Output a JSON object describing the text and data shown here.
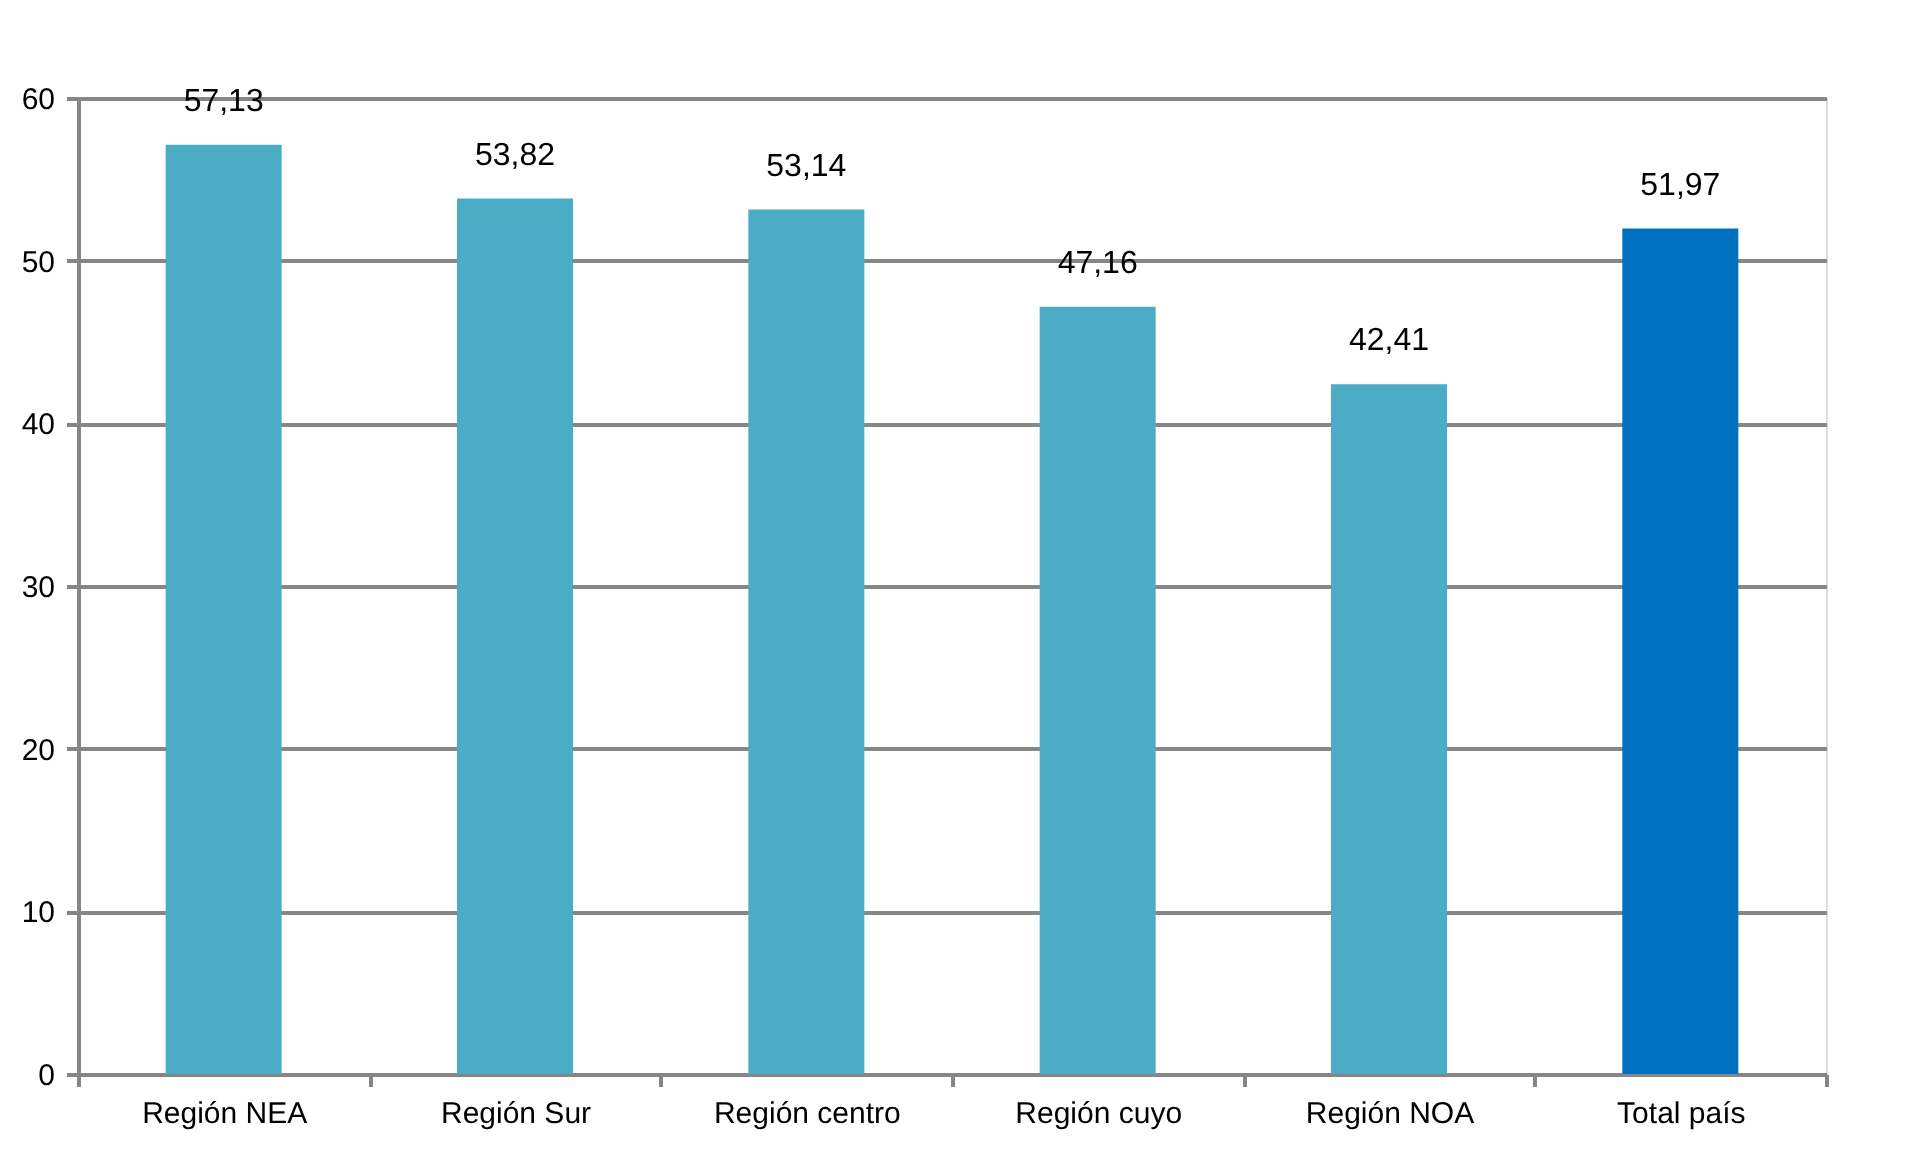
{
  "chart_data": {
    "type": "bar",
    "categories": [
      "Región NEA",
      "Región Sur",
      "Región centro",
      "Región cuyo",
      "Región NOA",
      "Total país"
    ],
    "values": [
      57.13,
      53.82,
      53.14,
      47.16,
      42.41,
      51.97
    ],
    "colors": [
      "#4bacc6",
      "#4bacc6",
      "#4bacc6",
      "#4bacc6",
      "#4bacc6",
      "#0070c0"
    ],
    "value_labels": [
      "57,13",
      "53,82",
      "53,14",
      "47,16",
      "42,41",
      "51,97"
    ],
    "ylim": [
      0,
      60
    ],
    "yticks": [
      0,
      10,
      20,
      30,
      40,
      50,
      60
    ],
    "grid": "y"
  }
}
